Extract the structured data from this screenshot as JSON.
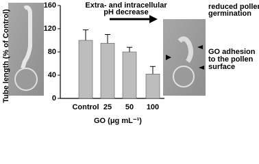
{
  "chart_data": {
    "type": "bar",
    "y_label": "Tube length (% of Control)",
    "x_label": "GO (μg mL⁻¹)",
    "categories": [
      "Control",
      "25",
      "50",
      "100"
    ],
    "values": [
      100,
      95,
      80,
      42
    ],
    "errors": [
      18,
      15,
      8,
      13
    ],
    "color": "#bdbdbd",
    "ylim": [
      0,
      160
    ],
    "yticks": [
      0,
      40,
      80,
      120,
      160
    ],
    "annotations": [
      {
        "lines": [
          "Extra- and intracellular",
          "pH decrease"
        ]
      },
      {
        "lines": [
          "reduced pollen",
          "germination"
        ]
      },
      {
        "lines": [
          "GO adhesion",
          "to the pollen",
          "surface"
        ]
      }
    ]
  }
}
